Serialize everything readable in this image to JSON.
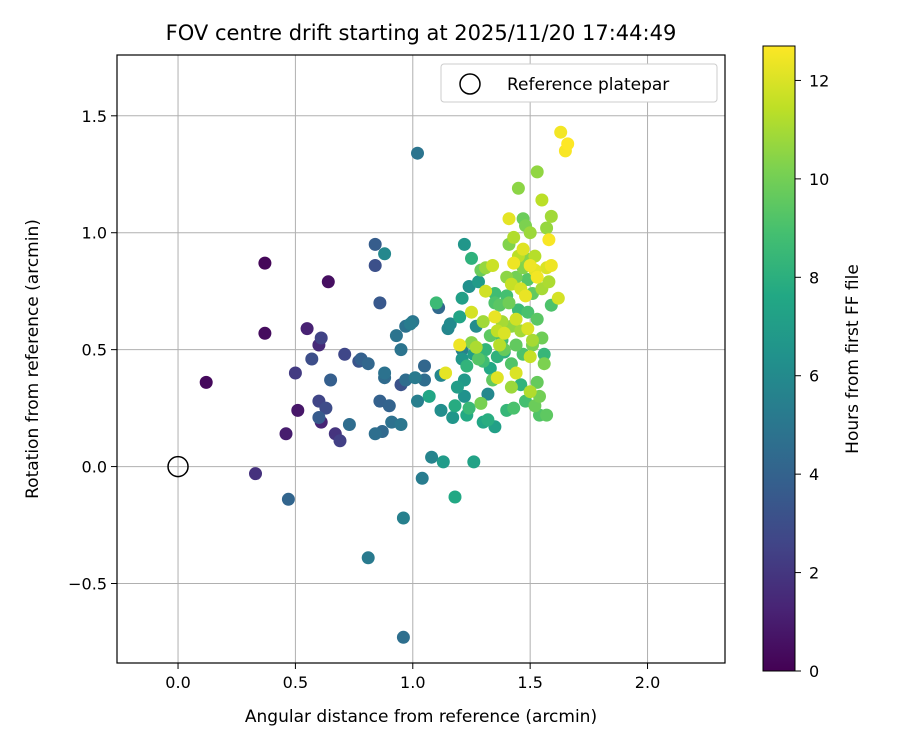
{
  "chart_data": {
    "type": "scatter",
    "title": "FOV centre drift starting at 2025/11/20 17:44:49",
    "xlabel": "Angular distance from reference (arcmin)",
    "ylabel": "Rotation from reference (arcmin)",
    "xlim": [
      -0.26,
      2.33
    ],
    "ylim": [
      -0.84,
      1.76
    ],
    "xticks": [
      0.0,
      0.5,
      1.0,
      1.5,
      2.0
    ],
    "xtick_labels": [
      "0.0",
      "0.5",
      "1.0",
      "1.5",
      "2.0"
    ],
    "yticks": [
      -0.5,
      0.0,
      0.5,
      1.0,
      1.5
    ],
    "ytick_labels": [
      "−0.5",
      "0.0",
      "0.5",
      "1.0",
      "1.5"
    ],
    "grid": true,
    "colormap": "viridis",
    "colorbar": {
      "label": "Hours from first FF file",
      "range": [
        0,
        12.7
      ],
      "ticks": [
        0,
        2,
        4,
        6,
        8,
        10,
        12
      ],
      "tick_labels": [
        "0",
        "2",
        "4",
        "6",
        "8",
        "10",
        "12"
      ]
    },
    "legend": {
      "position": "top-right",
      "entries": [
        "Reference platepar"
      ]
    },
    "reference_point": {
      "x": 0.0,
      "y": 0.0,
      "label": "Reference platepar"
    },
    "points": [
      {
        "x": 0.12,
        "y": 0.36,
        "h": 0.3
      },
      {
        "x": 0.37,
        "y": 0.87,
        "h": 0.2
      },
      {
        "x": 0.37,
        "y": 0.57,
        "h": 0.4
      },
      {
        "x": 0.64,
        "y": 0.79,
        "h": 0.5
      },
      {
        "x": 0.33,
        "y": -0.03,
        "h": 1.8
      },
      {
        "x": 0.46,
        "y": 0.14,
        "h": 1.0
      },
      {
        "x": 0.51,
        "y": 0.24,
        "h": 0.8
      },
      {
        "x": 0.55,
        "y": 0.59,
        "h": 1.2
      },
      {
        "x": 0.5,
        "y": 0.4,
        "h": 2.2
      },
      {
        "x": 0.6,
        "y": 0.52,
        "h": 1.5
      },
      {
        "x": 0.61,
        "y": 0.55,
        "h": 2.5
      },
      {
        "x": 0.57,
        "y": 0.46,
        "h": 3.0
      },
      {
        "x": 0.61,
        "y": 0.19,
        "h": 1.3
      },
      {
        "x": 0.6,
        "y": 0.28,
        "h": 2.6
      },
      {
        "x": 0.63,
        "y": 0.25,
        "h": 2.9
      },
      {
        "x": 0.6,
        "y": 0.21,
        "h": 3.6
      },
      {
        "x": 0.67,
        "y": 0.14,
        "h": 1.9
      },
      {
        "x": 0.69,
        "y": 0.11,
        "h": 2.4
      },
      {
        "x": 0.65,
        "y": 0.37,
        "h": 3.8
      },
      {
        "x": 0.71,
        "y": 0.48,
        "h": 2.7
      },
      {
        "x": 0.73,
        "y": 0.18,
        "h": 4.5
      },
      {
        "x": 0.77,
        "y": 0.45,
        "h": 3.3
      },
      {
        "x": 0.78,
        "y": 0.46,
        "h": 3.9
      },
      {
        "x": 0.81,
        "y": 0.44,
        "h": 4.2
      },
      {
        "x": 0.47,
        "y": -0.14,
        "h": 4.1
      },
      {
        "x": 0.81,
        "y": -0.39,
        "h": 5.2
      },
      {
        "x": 0.84,
        "y": 0.95,
        "h": 3.7
      },
      {
        "x": 0.84,
        "y": 0.86,
        "h": 3.1
      },
      {
        "x": 0.84,
        "y": 0.14,
        "h": 4.6
      },
      {
        "x": 0.86,
        "y": 0.7,
        "h": 3.5
      },
      {
        "x": 0.87,
        "y": 0.15,
        "h": 4.3
      },
      {
        "x": 0.86,
        "y": 0.28,
        "h": 3.9
      },
      {
        "x": 0.88,
        "y": 0.91,
        "h": 5.9
      },
      {
        "x": 0.88,
        "y": 0.38,
        "h": 4.4
      },
      {
        "x": 0.88,
        "y": 0.4,
        "h": 4.8
      },
      {
        "x": 0.9,
        "y": 0.26,
        "h": 4.0
      },
      {
        "x": 0.91,
        "y": 0.19,
        "h": 4.7
      },
      {
        "x": 0.93,
        "y": 0.56,
        "h": 4.9
      },
      {
        "x": 0.95,
        "y": 0.18,
        "h": 5.0
      },
      {
        "x": 0.95,
        "y": 0.35,
        "h": 3.2
      },
      {
        "x": 0.95,
        "y": 0.5,
        "h": 4.9
      },
      {
        "x": 0.97,
        "y": 0.37,
        "h": 4.5
      },
      {
        "x": 0.96,
        "y": -0.22,
        "h": 5.5
      },
      {
        "x": 0.96,
        "y": -0.73,
        "h": 4.6
      },
      {
        "x": 0.97,
        "y": 0.6,
        "h": 4.8
      },
      {
        "x": 0.99,
        "y": 0.61,
        "h": 5.3
      },
      {
        "x": 1.0,
        "y": 0.62,
        "h": 5.0
      },
      {
        "x": 1.02,
        "y": 1.34,
        "h": 4.9
      },
      {
        "x": 1.01,
        "y": 0.38,
        "h": 5.2
      },
      {
        "x": 1.02,
        "y": 0.28,
        "h": 5.4
      },
      {
        "x": 1.04,
        "y": -0.05,
        "h": 5.3
      },
      {
        "x": 1.05,
        "y": 0.43,
        "h": 4.2
      },
      {
        "x": 1.05,
        "y": 0.37,
        "h": 4.5
      },
      {
        "x": 1.07,
        "y": 0.3,
        "h": 7.5
      },
      {
        "x": 1.08,
        "y": 0.04,
        "h": 5.7
      },
      {
        "x": 1.1,
        "y": 0.7,
        "h": 8.6
      },
      {
        "x": 1.11,
        "y": 0.68,
        "h": 4.3
      },
      {
        "x": 1.12,
        "y": 0.39,
        "h": 5.8
      },
      {
        "x": 1.12,
        "y": 0.24,
        "h": 6.2
      },
      {
        "x": 1.13,
        "y": 0.02,
        "h": 6.9
      },
      {
        "x": 1.14,
        "y": 0.4,
        "h": 12.2
      },
      {
        "x": 1.15,
        "y": 0.59,
        "h": 5.8
      },
      {
        "x": 1.16,
        "y": 0.61,
        "h": 6.0
      },
      {
        "x": 1.17,
        "y": 0.21,
        "h": 6.6
      },
      {
        "x": 1.18,
        "y": 0.26,
        "h": 7.8
      },
      {
        "x": 1.18,
        "y": -0.13,
        "h": 7.6
      },
      {
        "x": 1.19,
        "y": 0.34,
        "h": 7.0
      },
      {
        "x": 1.2,
        "y": 0.52,
        "h": 12.4
      },
      {
        "x": 1.2,
        "y": 0.64,
        "h": 7.4
      },
      {
        "x": 1.21,
        "y": 0.5,
        "h": 5.5
      },
      {
        "x": 1.21,
        "y": 0.72,
        "h": 7.1
      },
      {
        "x": 1.22,
        "y": 0.95,
        "h": 6.6
      },
      {
        "x": 1.22,
        "y": 0.37,
        "h": 6.8
      },
      {
        "x": 1.22,
        "y": 0.3,
        "h": 6.4
      },
      {
        "x": 1.23,
        "y": 0.22,
        "h": 7.7
      },
      {
        "x": 1.23,
        "y": 0.43,
        "h": 8.2
      },
      {
        "x": 1.24,
        "y": 0.25,
        "h": 8.5
      },
      {
        "x": 1.24,
        "y": 0.77,
        "h": 6.3
      },
      {
        "x": 1.25,
        "y": 0.66,
        "h": 11.9
      },
      {
        "x": 1.25,
        "y": 0.89,
        "h": 8.1
      },
      {
        "x": 1.25,
        "y": 0.53,
        "h": 10.4
      },
      {
        "x": 1.26,
        "y": 0.02,
        "h": 7.3
      },
      {
        "x": 1.26,
        "y": 0.48,
        "h": 7.0
      },
      {
        "x": 1.27,
        "y": 0.6,
        "h": 6.1
      },
      {
        "x": 1.28,
        "y": 0.46,
        "h": 9.3
      },
      {
        "x": 1.28,
        "y": 0.79,
        "h": 6.9
      },
      {
        "x": 1.29,
        "y": 0.27,
        "h": 10.1
      },
      {
        "x": 1.29,
        "y": 0.84,
        "h": 9.8
      },
      {
        "x": 1.3,
        "y": 0.62,
        "h": 10.9
      },
      {
        "x": 1.3,
        "y": 0.19,
        "h": 7.5
      },
      {
        "x": 1.31,
        "y": 0.5,
        "h": 8.3
      },
      {
        "x": 1.31,
        "y": 0.75,
        "h": 11.8
      },
      {
        "x": 1.31,
        "y": 0.85,
        "h": 10.7
      },
      {
        "x": 1.32,
        "y": 0.31,
        "h": 5.9
      },
      {
        "x": 1.32,
        "y": 0.2,
        "h": 7.9
      },
      {
        "x": 1.33,
        "y": 0.42,
        "h": 7.6
      },
      {
        "x": 1.33,
        "y": 0.56,
        "h": 9.5
      },
      {
        "x": 1.34,
        "y": 0.86,
        "h": 11.7
      },
      {
        "x": 1.35,
        "y": 0.17,
        "h": 7.2
      },
      {
        "x": 1.35,
        "y": 0.7,
        "h": 9.1
      },
      {
        "x": 1.35,
        "y": 0.74,
        "h": 8.7
      },
      {
        "x": 1.35,
        "y": 0.64,
        "h": 12.3
      },
      {
        "x": 1.36,
        "y": 0.58,
        "h": 11.5
      },
      {
        "x": 1.36,
        "y": 0.47,
        "h": 8.1
      },
      {
        "x": 1.36,
        "y": 0.38,
        "h": 12.1
      },
      {
        "x": 1.37,
        "y": 0.52,
        "h": 11.3
      },
      {
        "x": 1.37,
        "y": 0.69,
        "h": 9.4
      },
      {
        "x": 1.38,
        "y": 0.54,
        "h": 8.8
      },
      {
        "x": 1.38,
        "y": 0.62,
        "h": 11.0
      },
      {
        "x": 1.39,
        "y": 0.5,
        "h": 9.7
      },
      {
        "x": 1.39,
        "y": 0.57,
        "h": 12.0
      },
      {
        "x": 1.4,
        "y": 0.24,
        "h": 8.4
      },
      {
        "x": 1.4,
        "y": 0.73,
        "h": 8.9
      },
      {
        "x": 1.4,
        "y": 0.81,
        "h": 10.5
      },
      {
        "x": 1.41,
        "y": 0.95,
        "h": 10.3
      },
      {
        "x": 1.41,
        "y": 1.06,
        "h": 12.2
      },
      {
        "x": 1.41,
        "y": 0.7,
        "h": 9.9
      },
      {
        "x": 1.42,
        "y": 0.78,
        "h": 11.6
      },
      {
        "x": 1.42,
        "y": 0.34,
        "h": 10.8
      },
      {
        "x": 1.42,
        "y": 0.44,
        "h": 9.2
      },
      {
        "x": 1.42,
        "y": 0.6,
        "h": 10.6
      },
      {
        "x": 1.43,
        "y": 0.87,
        "h": 12.4
      },
      {
        "x": 1.43,
        "y": 0.98,
        "h": 11.2
      },
      {
        "x": 1.43,
        "y": 0.25,
        "h": 9.0
      },
      {
        "x": 1.44,
        "y": 0.4,
        "h": 12.0
      },
      {
        "x": 1.44,
        "y": 0.52,
        "h": 9.6
      },
      {
        "x": 1.44,
        "y": 0.81,
        "h": 10.0
      },
      {
        "x": 1.45,
        "y": 0.9,
        "h": 11.4
      },
      {
        "x": 1.45,
        "y": 1.19,
        "h": 10.5
      },
      {
        "x": 1.45,
        "y": 0.67,
        "h": 8.6
      },
      {
        "x": 1.46,
        "y": 0.35,
        "h": 8.2
      },
      {
        "x": 1.46,
        "y": 0.76,
        "h": 11.9
      },
      {
        "x": 1.46,
        "y": 0.58,
        "h": 10.9
      },
      {
        "x": 1.47,
        "y": 1.06,
        "h": 9.8
      },
      {
        "x": 1.47,
        "y": 0.93,
        "h": 12.1
      },
      {
        "x": 1.47,
        "y": 0.85,
        "h": 10.3
      },
      {
        "x": 1.47,
        "y": 0.48,
        "h": 9.1
      },
      {
        "x": 1.48,
        "y": 1.03,
        "h": 10.2
      },
      {
        "x": 1.48,
        "y": 0.28,
        "h": 8.9
      },
      {
        "x": 1.48,
        "y": 0.73,
        "h": 12.3
      },
      {
        "x": 1.49,
        "y": 0.59,
        "h": 12.0
      },
      {
        "x": 1.49,
        "y": 0.8,
        "h": 9.3
      },
      {
        "x": 1.49,
        "y": 0.66,
        "h": 9.0
      },
      {
        "x": 1.5,
        "y": 1.0,
        "h": 10.8
      },
      {
        "x": 1.5,
        "y": 0.47,
        "h": 11.6
      },
      {
        "x": 1.5,
        "y": 0.32,
        "h": 11.2
      },
      {
        "x": 1.5,
        "y": 0.86,
        "h": 12.4
      },
      {
        "x": 1.51,
        "y": 0.54,
        "h": 11.0
      },
      {
        "x": 1.51,
        "y": 0.74,
        "h": 9.6
      },
      {
        "x": 1.51,
        "y": 0.52,
        "h": 10.1
      },
      {
        "x": 1.52,
        "y": 0.9,
        "h": 11.3
      },
      {
        "x": 1.52,
        "y": 0.26,
        "h": 9.8
      },
      {
        "x": 1.52,
        "y": 0.84,
        "h": 12.2
      },
      {
        "x": 1.53,
        "y": 0.36,
        "h": 9.7
      },
      {
        "x": 1.53,
        "y": 0.63,
        "h": 9.4
      },
      {
        "x": 1.53,
        "y": 0.81,
        "h": 12.5
      },
      {
        "x": 1.53,
        "y": 1.26,
        "h": 10.6
      },
      {
        "x": 1.54,
        "y": 0.22,
        "h": 9.2
      },
      {
        "x": 1.54,
        "y": 0.3,
        "h": 10.0
      },
      {
        "x": 1.55,
        "y": 0.76,
        "h": 11.0
      },
      {
        "x": 1.55,
        "y": 0.55,
        "h": 9.9
      },
      {
        "x": 1.55,
        "y": 1.14,
        "h": 11.4
      },
      {
        "x": 1.56,
        "y": 0.48,
        "h": 8.4
      },
      {
        "x": 1.56,
        "y": 0.44,
        "h": 10.2
      },
      {
        "x": 1.57,
        "y": 0.22,
        "h": 9.5
      },
      {
        "x": 1.57,
        "y": 1.02,
        "h": 10.7
      },
      {
        "x": 1.57,
        "y": 0.85,
        "h": 12.0
      },
      {
        "x": 1.58,
        "y": 0.79,
        "h": 11.1
      },
      {
        "x": 1.58,
        "y": 0.97,
        "h": 12.6
      },
      {
        "x": 1.59,
        "y": 0.69,
        "h": 9.1
      },
      {
        "x": 1.59,
        "y": 1.07,
        "h": 10.9
      },
      {
        "x": 1.59,
        "y": 0.86,
        "h": 12.4
      },
      {
        "x": 1.62,
        "y": 0.72,
        "h": 11.9
      },
      {
        "x": 1.63,
        "y": 1.43,
        "h": 12.5
      },
      {
        "x": 1.65,
        "y": 1.35,
        "h": 12.6
      },
      {
        "x": 1.66,
        "y": 1.38,
        "h": 12.7
      },
      {
        "x": 1.39,
        "y": 0.49,
        "h": 8.0
      },
      {
        "x": 1.3,
        "y": 0.45,
        "h": 8.7
      },
      {
        "x": 1.27,
        "y": 0.51,
        "h": 11.1
      },
      {
        "x": 1.44,
        "y": 0.63,
        "h": 11.8
      },
      {
        "x": 1.34,
        "y": 0.37,
        "h": 9.6
      },
      {
        "x": 1.21,
        "y": 0.46,
        "h": 6.7
      },
      {
        "x": 1.48,
        "y": 0.89,
        "h": 10.4
      }
    ]
  }
}
